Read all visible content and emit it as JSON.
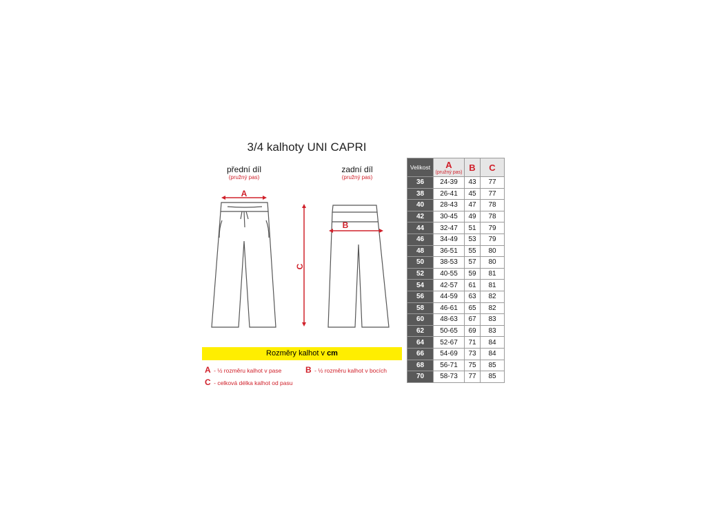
{
  "title": "3/4 kalhoty UNI CAPRI",
  "front": {
    "label": "přední díl",
    "note": "(pružný pas)"
  },
  "back": {
    "label": "zadní díl",
    "note": "(pružný pas)"
  },
  "drawing": {
    "a": "A",
    "b": "B",
    "c": "C"
  },
  "banner": {
    "text": "Rozměry kalhot v",
    "unit": "cm"
  },
  "legend": [
    {
      "key": "A",
      "text": "- ½ rozměru kalhot v pase"
    },
    {
      "key": "B",
      "text": "- ½ rozměru kalhot v bocích"
    },
    {
      "key": "C",
      "text": "- celková délka kalhot od pasu"
    }
  ],
  "table": {
    "header": {
      "size": "Velikost",
      "a": "A",
      "a_note": "(pružný pas)",
      "b": "B",
      "c": "C"
    },
    "rows": [
      [
        36,
        "24-39",
        43,
        77
      ],
      [
        38,
        "26-41",
        45,
        77
      ],
      [
        40,
        "28-43",
        47,
        78
      ],
      [
        42,
        "30-45",
        49,
        78
      ],
      [
        44,
        "32-47",
        51,
        79
      ],
      [
        46,
        "34-49",
        53,
        79
      ],
      [
        48,
        "36-51",
        55,
        80
      ],
      [
        50,
        "38-53",
        57,
        80
      ],
      [
        52,
        "40-55",
        59,
        81
      ],
      [
        54,
        "42-57",
        61,
        81
      ],
      [
        56,
        "44-59",
        63,
        82
      ],
      [
        58,
        "46-61",
        65,
        82
      ],
      [
        60,
        "48-63",
        67,
        83
      ],
      [
        62,
        "50-65",
        69,
        83
      ],
      [
        64,
        "52-67",
        71,
        84
      ],
      [
        66,
        "54-69",
        73,
        84
      ],
      [
        68,
        "56-71",
        75,
        85
      ],
      [
        70,
        "58-73",
        77,
        85
      ]
    ]
  }
}
